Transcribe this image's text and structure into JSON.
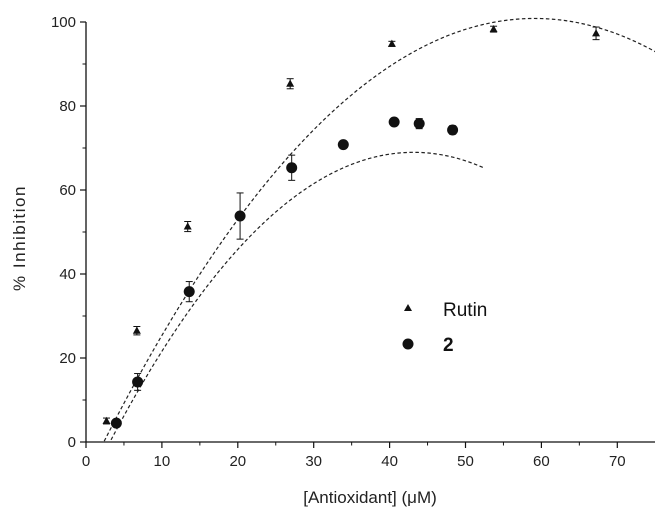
{
  "chart_data": {
    "type": "scatter",
    "xlabel": "[Antioxidant] (μM)",
    "ylabel": "% Inhibition",
    "xlim": [
      0,
      75
    ],
    "ylim": [
      0,
      100
    ],
    "xticks": [
      0,
      10,
      20,
      30,
      40,
      50,
      60,
      70
    ],
    "yticks": [
      0,
      20,
      40,
      60,
      80,
      100
    ],
    "xtick_labels": [
      "0",
      "10",
      "20",
      "30",
      "40",
      "50",
      "60",
      "70"
    ],
    "ytick_labels": [
      "0",
      "20",
      "40",
      "60",
      "80",
      "100"
    ],
    "legend_position": "center-right",
    "grid": false,
    "series": [
      {
        "name": "Rutin",
        "marker": "triangle",
        "color": "#111111",
        "points": [
          {
            "x": 2.7,
            "y": 5.0,
            "err": 0.7
          },
          {
            "x": 6.7,
            "y": 26.5,
            "err": 1.0
          },
          {
            "x": 13.4,
            "y": 51.3,
            "err": 1.2
          },
          {
            "x": 26.9,
            "y": 85.3,
            "err": 1.2
          },
          {
            "x": 40.3,
            "y": 94.8,
            "err": 0.6
          },
          {
            "x": 53.7,
            "y": 98.3,
            "err": 0.7
          },
          {
            "x": 67.2,
            "y": 97.3,
            "err": 1.5
          }
        ],
        "fit": {
          "type": "quadratic",
          "coef": [
            -8.5,
            3.7,
            -0.0313
          ],
          "x_range": [
            2.4,
            75
          ]
        }
      },
      {
        "name": "2",
        "marker": "circle",
        "color": "#111111",
        "points": [
          {
            "x": 4.0,
            "y": 4.5,
            "err": 0.8
          },
          {
            "x": 6.8,
            "y": 14.3,
            "err": 2.0
          },
          {
            "x": 13.6,
            "y": 35.8,
            "err": 2.4
          },
          {
            "x": 20.3,
            "y": 53.8,
            "err": 5.5
          },
          {
            "x": 27.1,
            "y": 65.3,
            "err": 3.0
          },
          {
            "x": 33.9,
            "y": 70.8,
            "err": 0.6
          },
          {
            "x": 40.6,
            "y": 76.2,
            "err": 0.5
          },
          {
            "x": 43.9,
            "y": 75.8,
            "err": 1.2
          },
          {
            "x": 48.3,
            "y": 74.3,
            "err": 1.0
          }
        ],
        "fit": {
          "type": "quadratic",
          "coef": [
            -11.3,
            3.72,
            -0.0431
          ],
          "x_range": [
            3.3,
            52.5
          ]
        }
      }
    ]
  }
}
